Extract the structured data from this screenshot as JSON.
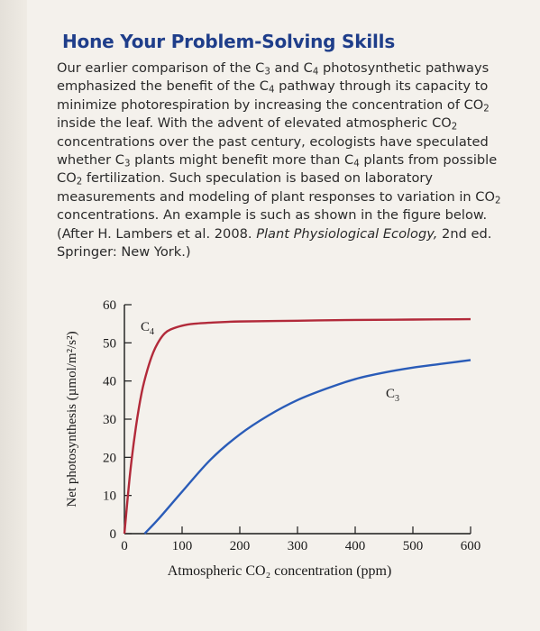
{
  "heading": "Hone Your Problem-Solving Skills",
  "paragraph": [
    {
      "t": "Our earlier comparison of the C"
    },
    {
      "t": "3",
      "sub": true
    },
    {
      "t": " and C"
    },
    {
      "t": "4",
      "sub": true
    },
    {
      "t": " photosynthetic pathways emphasized the benefit of the C"
    },
    {
      "t": "4",
      "sub": true
    },
    {
      "t": " pathway through its capacity to minimize photorespiration by increasing the concentration of CO"
    },
    {
      "t": "2",
      "sub": true
    },
    {
      "t": " inside the leaf. With the advent of elevated atmospheric CO"
    },
    {
      "t": "2",
      "sub": true
    },
    {
      "t": " concentrations over the past century, ecologists have speculated whether C"
    },
    {
      "t": "3",
      "sub": true
    },
    {
      "t": " plants might benefit more than C"
    },
    {
      "t": "4",
      "sub": true
    },
    {
      "t": " plants from possible CO"
    },
    {
      "t": "2",
      "sub": true
    },
    {
      "t": " fertilization. Such speculation is based on laboratory measurements and modeling of plant responses to variation in CO"
    },
    {
      "t": "2",
      "sub": true
    },
    {
      "t": " concentrations. An example is such as shown in the figure below. (After H. Lambers et al. 2008. "
    },
    {
      "t": "Plant Physiological Ecology,",
      "italic": true
    },
    {
      "t": " 2nd ed. Springer: New York.)"
    }
  ],
  "chart_data": {
    "type": "line",
    "xlabel": "Atmospheric CO₂ concentration (ppm)",
    "ylabel": "Net photosynthesis (µmol/m²/s²)",
    "xlim": [
      0,
      600
    ],
    "ylim": [
      0,
      60
    ],
    "xticks": [
      0,
      100,
      200,
      300,
      400,
      500,
      600
    ],
    "yticks": [
      0,
      10,
      20,
      30,
      40,
      50,
      60
    ],
    "grid": false,
    "series": [
      {
        "name": "C4",
        "color": "#b22a3a",
        "x": [
          0,
          10,
          20,
          30,
          40,
          50,
          60,
          70,
          80,
          100,
          120,
          150,
          200,
          300,
          400,
          500,
          600
        ],
        "y": [
          0,
          16,
          28,
          37,
          43,
          47.5,
          50.5,
          52.5,
          53.5,
          54.5,
          55,
          55.3,
          55.6,
          55.8,
          56,
          56.1,
          56.2
        ]
      },
      {
        "name": "C3",
        "color": "#2a5cb8",
        "x": [
          35,
          60,
          100,
          150,
          200,
          250,
          300,
          350,
          400,
          450,
          500,
          550,
          600
        ],
        "y": [
          0,
          4,
          11,
          19.5,
          26,
          31,
          35,
          38,
          40.5,
          42.2,
          43.5,
          44.5,
          45.5
        ]
      }
    ]
  }
}
